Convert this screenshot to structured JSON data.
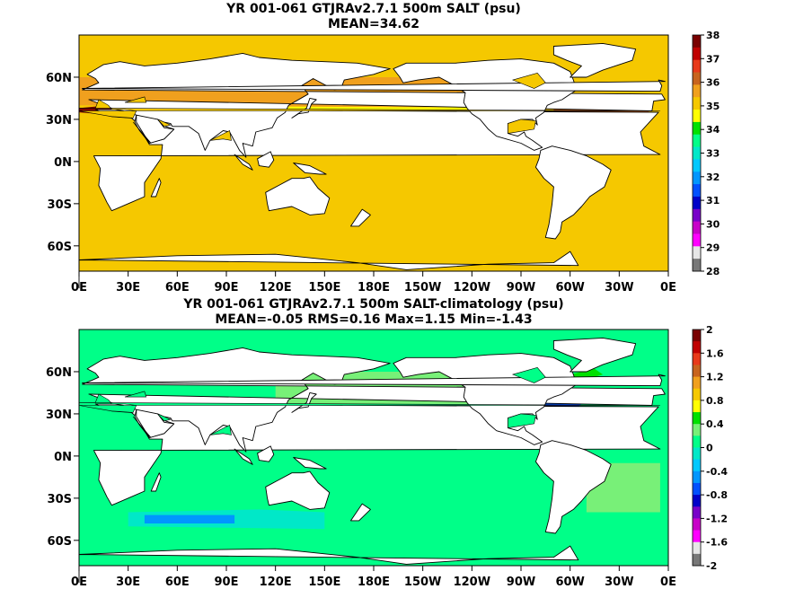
{
  "chart_data": [
    {
      "type": "heatmap",
      "title_line1": "YR 001-061 GTJRAv2.7.1 500m SALT (psu)",
      "title_line2": "MEAN=34.62",
      "x_ticks": [
        "0E",
        "30E",
        "60E",
        "90E",
        "120E",
        "150E",
        "180E",
        "150W",
        "120W",
        "90W",
        "60W",
        "30W",
        "0E"
      ],
      "y_ticks": [
        "60N",
        "30N",
        "0N",
        "30S",
        "60S"
      ],
      "y_tick_values": [
        60,
        30,
        0,
        -30,
        -60
      ],
      "xlim": [
        0,
        360
      ],
      "ylim": [
        -78,
        90
      ],
      "colorbar": {
        "labels": [
          "38",
          "37",
          "36",
          "35",
          "34",
          "33",
          "32",
          "31",
          "30",
          "29",
          "28"
        ],
        "colors": [
          "#7a0000",
          "#c00000",
          "#e83a1a",
          "#c8641e",
          "#f0a01e",
          "#f5c800",
          "#ffff00",
          "#00e000",
          "#00ff88",
          "#00e8c8",
          "#00c8ff",
          "#0096ff",
          "#0050ff",
          "#0000c8",
          "#7800c8",
          "#c800c8",
          "#ff00ff",
          "#e6e6e6",
          "#787878"
        ]
      },
      "fields": [
        {
          "name": "open ocean",
          "color": "#f5c800"
        },
        {
          "name": "north pacific",
          "color": "#ffff00"
        },
        {
          "name": "southern band",
          "color": "#ffff00"
        },
        {
          "name": "subtropical north atlantic",
          "color": "#c8641e"
        },
        {
          "name": "north atlantic",
          "color": "#f0a01e"
        },
        {
          "name": "arabian sea",
          "color": "#c8641e"
        },
        {
          "name": "mediterranean",
          "color": "#7a0000"
        }
      ]
    },
    {
      "type": "heatmap",
      "title_line1": "YR 001-061 GTJRAv2.7.1 500m SALT-climatology (psu)",
      "title_line2": "MEAN=-0.05   RMS=0.16   Max=1.15   Min=-1.43",
      "x_ticks": [
        "0E",
        "30E",
        "60E",
        "90E",
        "120E",
        "150E",
        "180E",
        "150W",
        "120W",
        "90W",
        "60W",
        "30W",
        "0E"
      ],
      "y_ticks": [
        "60N",
        "30N",
        "0N",
        "30S",
        "60S"
      ],
      "y_tick_values": [
        60,
        30,
        0,
        -30,
        -60
      ],
      "xlim": [
        0,
        360
      ],
      "ylim": [
        -78,
        90
      ],
      "colorbar": {
        "labels": [
          "2",
          "1.6",
          "1.2",
          "0.8",
          "0.4",
          "0",
          "-0.4",
          "-0.8",
          "-1.2",
          "-1.6",
          "-2"
        ],
        "colors": [
          "#7a0000",
          "#c00000",
          "#e83a1a",
          "#c8641e",
          "#f0a01e",
          "#f5c800",
          "#ffff00",
          "#00e000",
          "#78f078",
          "#00ff88",
          "#00e8c8",
          "#00c8ff",
          "#0096ff",
          "#0050ff",
          "#0000c8",
          "#7800c8",
          "#c800c8",
          "#ff00ff",
          "#e6e6e6",
          "#787878"
        ]
      },
      "fields": [
        {
          "name": "open ocean",
          "color": "#00ff88"
        },
        {
          "name": "north pacific",
          "color": "#78f078"
        },
        {
          "name": "south atlantic",
          "color": "#78f078"
        },
        {
          "name": "indian ocean band",
          "color": "#00e8c8"
        },
        {
          "name": "indian ocean core",
          "color": "#0096ff"
        },
        {
          "name": "gulf stream",
          "color": "#0050ff"
        },
        {
          "name": "labrador",
          "color": "#00e000"
        }
      ]
    }
  ]
}
